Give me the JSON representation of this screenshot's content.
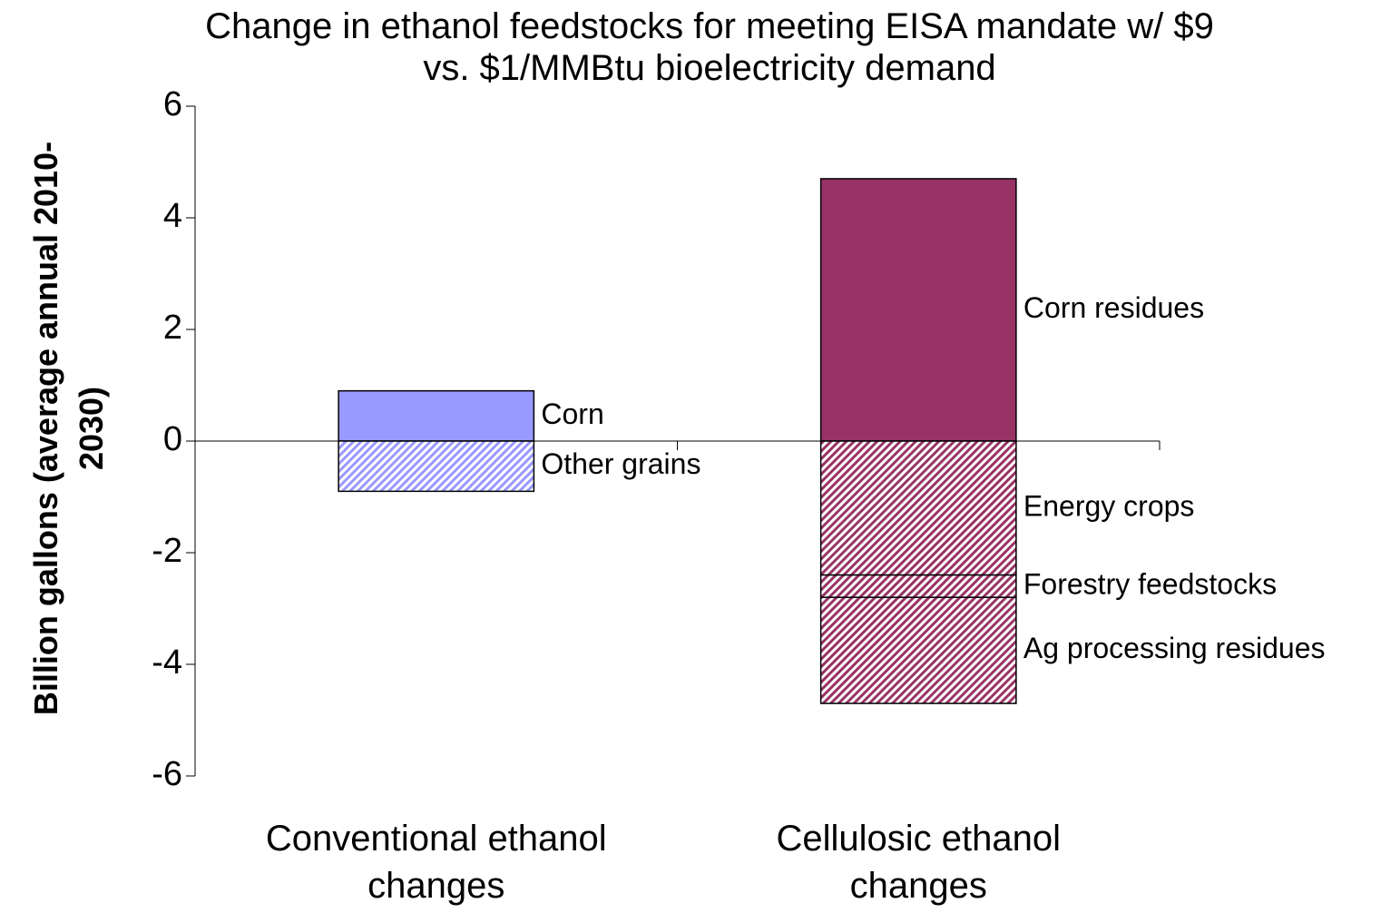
{
  "chart_data": {
    "type": "bar",
    "stacked": true,
    "title": "Change in ethanol feedstocks for meeting EISA mandate w/ $9 vs. $1/MMBtu bioelectricity demand",
    "ylabel": "Billion gallons (average annual 2010-2030)",
    "categories": [
      "Conventional ethanol changes",
      "Cellulosic ethanol changes"
    ],
    "series": [
      {
        "name": "Corn",
        "color": "#9999ff",
        "hatch": false,
        "values": [
          0.9,
          null
        ]
      },
      {
        "name": "Other grains",
        "color": "#9999ff",
        "hatch": true,
        "values": [
          -0.9,
          null
        ]
      },
      {
        "name": "Corn residues",
        "color": "#993366",
        "hatch": false,
        "values": [
          null,
          4.7
        ]
      },
      {
        "name": "Energy crops",
        "color": "#993366",
        "hatch": true,
        "values": [
          null,
          -2.4
        ]
      },
      {
        "name": "Forestry feedstocks",
        "color": "#993366",
        "hatch": true,
        "values": [
          null,
          -0.4
        ]
      },
      {
        "name": "Ag processing residues",
        "color": "#993366",
        "hatch": true,
        "values": [
          null,
          -1.9
        ]
      }
    ],
    "ylim": [
      -6,
      6
    ],
    "yticks": [
      -6,
      -4,
      -2,
      0,
      2,
      4,
      6
    ],
    "grid": false
  }
}
